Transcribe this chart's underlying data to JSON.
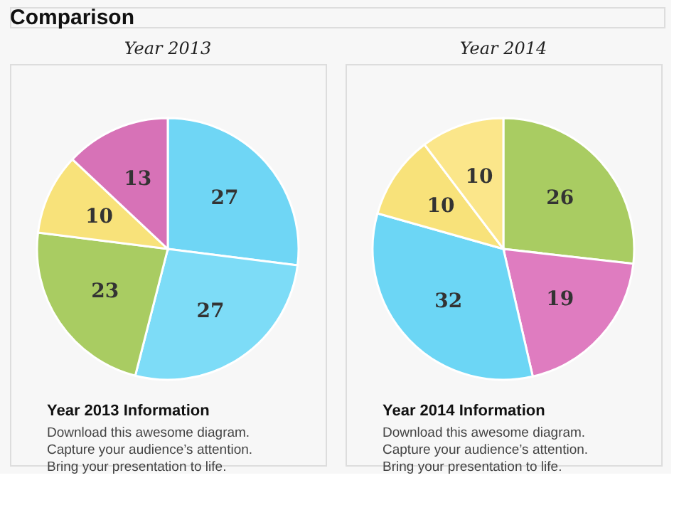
{
  "chart_data": [
    {
      "type": "other",
      "title": "Comparison"
    },
    {
      "type": "pie",
      "title": "Year 2013",
      "categories": [
        null,
        null,
        null,
        null,
        null
      ],
      "values": [
        27,
        27,
        23,
        10,
        13
      ],
      "colors": [
        "#6fd6f5",
        "#7ddcf7",
        "#a9cc62",
        "#f8e27a",
        "#d772b7"
      ],
      "data_labels": true,
      "legend": false,
      "annotations": [
        "Year 2013 Information",
        "Download this awesome diagram.",
        "Capture your audience’s attention.",
        "Bring your presentation to life."
      ]
    },
    {
      "type": "pie",
      "title": "Year 2014",
      "categories": [
        null,
        null,
        null,
        null,
        null
      ],
      "values": [
        26,
        19,
        32,
        10,
        10
      ],
      "colors": [
        "#a9cc62",
        "#df7cc0",
        "#6cd6f5",
        "#f8e27a",
        "#fbe68a"
      ],
      "data_labels": true,
      "legend": false,
      "annotations": [
        "Year 2014 Information",
        "Download this awesome diagram.",
        "Capture your audience’s attention.",
        "Bring your presentation to life."
      ]
    }
  ]
}
